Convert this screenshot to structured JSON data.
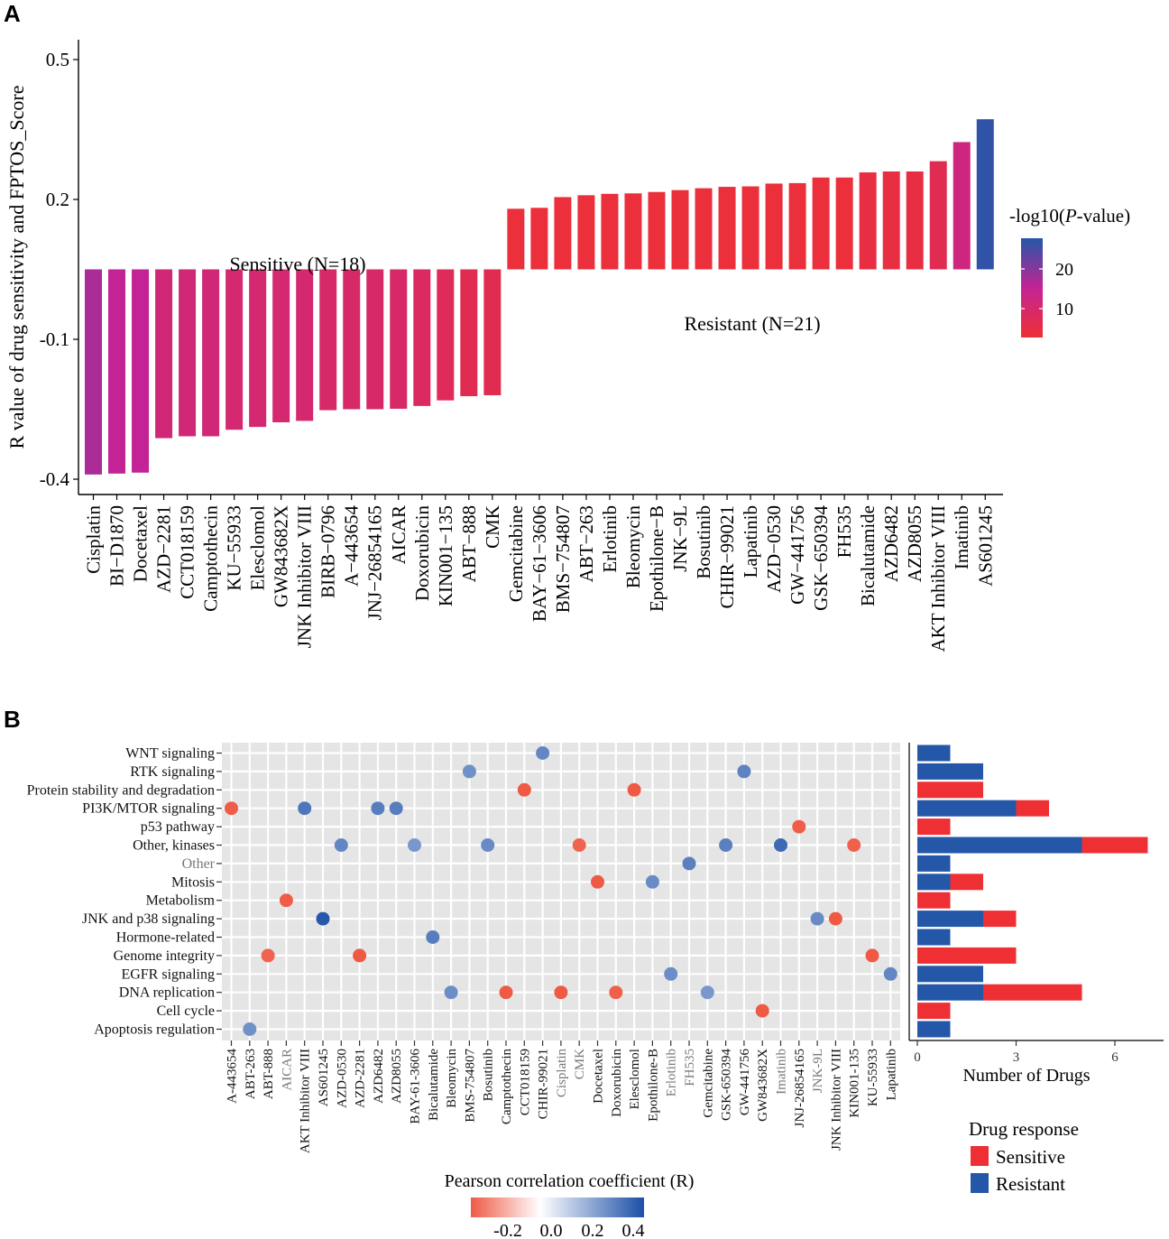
{
  "panel_a": {
    "label": "A",
    "sensitive_label": "Sensitive (N=18)",
    "resistant_label": "Resistant (N=21)",
    "legend_title_prefix": "-log10(",
    "legend_title_italic": "P",
    "legend_title_suffix": "-value)",
    "legend_ticks": [
      "20",
      "10"
    ]
  },
  "panel_b": {
    "label": "B",
    "corr_legend_title": "Pearson correlation coefficient (R)",
    "corr_legend_ticks": [
      "-0.2",
      "0.0",
      "0.2",
      "0.4"
    ],
    "bar_xlabel": "Number of Drugs",
    "bar_ticks": [
      "0",
      "3",
      "6"
    ],
    "response_legend_title": "Drug response",
    "response_legend_items": [
      "Sensitive",
      "Resistant"
    ]
  },
  "chart_data": [
    {
      "type": "bar",
      "title": "",
      "xlabel": "",
      "ylabel": "R value of drug sensitivity and FPTOS_Score",
      "ylim": [
        -0.43,
        0.55
      ],
      "y_ticks": [
        "0.5",
        "0.2",
        "-0.1",
        "-0.4"
      ],
      "baseline": 0.05,
      "color_scale": {
        "name": "-log10(P-value)",
        "low": "#ee3034",
        "mid": "#c42395",
        "high": "#2457a8",
        "range": [
          2,
          28
        ]
      },
      "categories": [
        "Cisplatin",
        "BI−D1870",
        "Docetaxel",
        "AZD−2281",
        "CCT018159",
        "Camptothecin",
        "KU−55933",
        "Elesclomol",
        "GW843682X",
        "JNK Inhibitor VIII",
        "BIRB−0796",
        "A−443654",
        "JNJ−26854165",
        "AICAR",
        "Doxorubicin",
        "KIN001−135",
        "ABT−888",
        "CMK",
        "Gemcitabine",
        "BAY−61−3606",
        "BMS−754807",
        "ABT−263",
        "Erlotinib",
        "Bleomycin",
        "Epothilone−B",
        "JNK−9L",
        "Bosutinib",
        "CHIR−99021",
        "Lapatinib",
        "AZD−0530",
        "GW−441756",
        "GSK−650394",
        "FH535",
        "Bicalutamide",
        "AZD6482",
        "AZD8055",
        "AKT Inhibitor VIII",
        "Imatinib",
        "AS601245"
      ],
      "values": [
        -0.39,
        -0.388,
        -0.386,
        -0.312,
        -0.308,
        -0.308,
        -0.294,
        -0.288,
        -0.278,
        -0.275,
        -0.252,
        -0.25,
        -0.25,
        -0.249,
        -0.243,
        -0.231,
        -0.222,
        -0.22,
        0.18,
        0.182,
        0.205,
        0.209,
        0.212,
        0.213,
        0.216,
        0.22,
        0.224,
        0.227,
        0.228,
        0.234,
        0.235,
        0.247,
        0.247,
        0.258,
        0.26,
        0.26,
        0.282,
        0.323,
        0.372
      ],
      "neg_log10_p": [
        17,
        15,
        15,
        11,
        11,
        11,
        10,
        10,
        10,
        10,
        9,
        9,
        9,
        9,
        8,
        7,
        6,
        6,
        3,
        3,
        3,
        3,
        3,
        3,
        3,
        3,
        3,
        3,
        3,
        3,
        3,
        3,
        3,
        4,
        4,
        4,
        6,
        12,
        27
      ]
    },
    {
      "type": "scatter",
      "title": "",
      "xlabel": "",
      "ylabel": "",
      "color_scale": {
        "name": "Pearson correlation coefficient (R)",
        "low": "#ef5a45",
        "mid": "#ffffff",
        "high": "#1c4fa8",
        "range": [
          -0.3,
          0.45
        ]
      },
      "x_categories": [
        "A-443654",
        "ABT-263",
        "ABT-888",
        "AICAR",
        "AKT Inhibitor VIII",
        "AS601245",
        "AZD-0530",
        "AZD-2281",
        "AZD6482",
        "AZD8055",
        "BAY-61-3606",
        "Bicalutamide",
        "Bleomycin",
        "BMS-754807",
        "Bosutinib",
        "Camptothecin",
        "CCT018159",
        "CHIR-99021",
        "Cisplatin",
        "CMK",
        "Docetaxel",
        "Doxorubicin",
        "Elesclomol",
        "Epothilone-B",
        "Erlotinib",
        "FH535",
        "Gemcitabine",
        "GSK-650394",
        "GW-441756",
        "GW843682X",
        "Imatinib",
        "JNJ-26854165",
        "JNK-9L",
        "JNK Inhibitor VIII",
        "KIN001-135",
        "KU-55933",
        "Lapatinib"
      ],
      "y_categories": [
        "WNT signaling",
        "RTK signaling",
        "Protein stability and degradation",
        "PI3K/MTOR signaling",
        "p53 pathway",
        "Other, kinases",
        "Other",
        "Mitosis",
        "Metabolism",
        "JNK and p38 signaling",
        "Hormone-related",
        "Genome integrity",
        "EGFR signaling",
        "DNA replication",
        "Cell cycle",
        "Apoptosis regulation"
      ],
      "points": [
        {
          "x": "CHIR-99021",
          "y": "WNT signaling",
          "r": 0.23
        },
        {
          "x": "BMS-754807",
          "y": "RTK signaling",
          "r": 0.2
        },
        {
          "x": "GW-441756",
          "y": "RTK signaling",
          "r": 0.24
        },
        {
          "x": "CCT018159",
          "y": "Protein stability and degradation",
          "r": -0.31
        },
        {
          "x": "Elesclomol",
          "y": "Protein stability and degradation",
          "r": -0.29
        },
        {
          "x": "A-443654",
          "y": "PI3K/MTOR signaling",
          "r": -0.25
        },
        {
          "x": "AKT Inhibitor VIII",
          "y": "PI3K/MTOR signaling",
          "r": 0.28
        },
        {
          "x": "AZD6482",
          "y": "PI3K/MTOR signaling",
          "r": 0.26
        },
        {
          "x": "AZD8055",
          "y": "PI3K/MTOR signaling",
          "r": 0.26
        },
        {
          "x": "JNJ-26854165",
          "y": "p53 pathway",
          "r": -0.25
        },
        {
          "x": "AZD-0530",
          "y": "Other, kinases",
          "r": 0.23
        },
        {
          "x": "BAY-61-3606",
          "y": "Other, kinases",
          "r": 0.18
        },
        {
          "x": "Bosutinib",
          "y": "Other, kinases",
          "r": 0.22
        },
        {
          "x": "CMK",
          "y": "Other, kinases",
          "r": -0.22
        },
        {
          "x": "GSK-650394",
          "y": "Other, kinases",
          "r": 0.25
        },
        {
          "x": "Imatinib",
          "y": "Other, kinases",
          "r": 0.32
        },
        {
          "x": "KIN001-135",
          "y": "Other, kinases",
          "r": -0.23
        },
        {
          "x": "FH535",
          "y": "Other",
          "r": 0.25
        },
        {
          "x": "Docetaxel",
          "y": "Mitosis",
          "r": -0.39
        },
        {
          "x": "Epothilone-B",
          "y": "Mitosis",
          "r": 0.22
        },
        {
          "x": "AICAR",
          "y": "Metabolism",
          "r": -0.25
        },
        {
          "x": "AS601245",
          "y": "JNK and p38 signaling",
          "r": 0.37
        },
        {
          "x": "JNK-9L",
          "y": "JNK and p38 signaling",
          "r": 0.22
        },
        {
          "x": "JNK Inhibitor VIII",
          "y": "JNK and p38 signaling",
          "r": -0.28
        },
        {
          "x": "Bicalutamide",
          "y": "Hormone-related",
          "r": 0.26
        },
        {
          "x": "ABT-888",
          "y": "Genome integrity",
          "r": -0.22
        },
        {
          "x": "AZD-2281",
          "y": "Genome integrity",
          "r": -0.31
        },
        {
          "x": "KU-55933",
          "y": "Genome integrity",
          "r": -0.29
        },
        {
          "x": "Erlotinib",
          "y": "EGFR signaling",
          "r": 0.21
        },
        {
          "x": "Lapatinib",
          "y": "EGFR signaling",
          "r": 0.23
        },
        {
          "x": "Bleomycin",
          "y": "DNA replication",
          "r": 0.21
        },
        {
          "x": "Camptothecin",
          "y": "DNA replication",
          "r": -0.31
        },
        {
          "x": "Cisplatin",
          "y": "DNA replication",
          "r": -0.39
        },
        {
          "x": "Doxorubicin",
          "y": "DNA replication",
          "r": -0.24
        },
        {
          "x": "Gemcitabine",
          "y": "DNA replication",
          "r": 0.18
        },
        {
          "x": "GW843682X",
          "y": "Cell cycle",
          "r": -0.28
        },
        {
          "x": "ABT-263",
          "y": "Apoptosis regulation",
          "r": 0.2
        }
      ],
      "x_gray_labels": [
        "AICAR",
        "Cisplatin",
        "CMK",
        "Erlotinib",
        "FH535",
        "Imatinib",
        "JNK-9L"
      ],
      "y_gray_labels": [
        "Other"
      ]
    },
    {
      "type": "bar",
      "orientation": "horizontal",
      "stacked": true,
      "title": "",
      "xlabel": "Number of Drugs",
      "ylabel": "",
      "xlim": [
        0,
        7.2
      ],
      "categories": [
        "WNT signaling",
        "RTK signaling",
        "Protein stability and degradation",
        "PI3K/MTOR signaling",
        "p53 pathway",
        "Other, kinases",
        "Other",
        "Mitosis",
        "Metabolism",
        "JNK and p38 signaling",
        "Hormone-related",
        "Genome integrity",
        "EGFR signaling",
        "DNA replication",
        "Cell cycle",
        "Apoptosis regulation"
      ],
      "series": [
        {
          "name": "Resistant",
          "color": "#2457a8",
          "values": [
            1,
            2,
            0,
            3,
            0,
            5,
            1,
            1,
            0,
            2,
            1,
            0,
            2,
            2,
            0,
            1
          ]
        },
        {
          "name": "Sensitive",
          "color": "#ee3034",
          "values": [
            0,
            0,
            2,
            1,
            1,
            2,
            0,
            1,
            1,
            1,
            0,
            3,
            0,
            3,
            1,
            0
          ]
        }
      ]
    }
  ]
}
